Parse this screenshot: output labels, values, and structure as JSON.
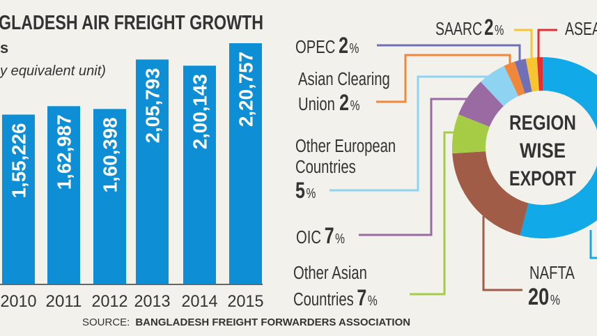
{
  "header": {
    "title": "GLADESH AIR FREIGHT GROWTH",
    "subtitle": "s",
    "unit_note": "y equivalent unit)"
  },
  "source": {
    "label": "SOURCE:",
    "name": "BANGLADESH FREIGHT FORWARDERS ASSOCIATION"
  },
  "donut_center": [
    "REGION",
    "WISE",
    "EXPORT"
  ],
  "chart_data": [
    {
      "type": "bar",
      "title": "GLADESH AIR FREIGHT GROWTH",
      "categories": [
        "2010",
        "2011",
        "2012",
        "2013",
        "2014",
        "2015"
      ],
      "values": [
        155226,
        162987,
        160398,
        205793,
        200143,
        220757
      ],
      "value_labels": [
        "1,55,226",
        "1,62,987",
        "1,60,398",
        "2,05,793",
        "2,00,143",
        "2,20,757"
      ],
      "ylim": [
        0,
        220757
      ],
      "grid": false,
      "color": "#0e8fd5"
    },
    {
      "type": "pie",
      "donut": true,
      "title": "REGION WISE EXPORT",
      "slices": [
        {
          "name": "",
          "value": 54,
          "label": "",
          "color": "#12a9e8"
        },
        {
          "name": "NAFTA",
          "value": 20,
          "label": "20",
          "color": "#a05c47"
        },
        {
          "name": "Other Asian Countries",
          "value": 7,
          "label": "7",
          "color": "#a6cc45"
        },
        {
          "name": "OIC",
          "value": 7,
          "label": "7",
          "color": "#9a6aa3"
        },
        {
          "name": "Other European Countries",
          "value": 5,
          "label": "5",
          "color": "#8fd3f2"
        },
        {
          "name": "Asian Clearing Union",
          "value": 2,
          "label": "2",
          "color": "#f0873a"
        },
        {
          "name": "OPEC",
          "value": 2,
          "label": "2",
          "color": "#6f70b8"
        },
        {
          "name": "SAARC",
          "value": 2,
          "label": "2",
          "color": "#f6c531"
        },
        {
          "name": "ASEA",
          "value": 1,
          "label": "",
          "color": "#e03035"
        }
      ],
      "labels": {
        "opec": {
          "name": "OPEC",
          "pct": "2",
          "unit": "%"
        },
        "acu": {
          "line1": "Asian Clearing",
          "line2": "Union",
          "pct": "2",
          "unit": "%"
        },
        "oec": {
          "line1": "Other European",
          "line2": "Countries",
          "pct": "5",
          "unit": "%"
        },
        "oic": {
          "name": "OIC",
          "pct": "7",
          "unit": "%"
        },
        "oac": {
          "line1": "Other Asian",
          "line2": "Countries",
          "pct": "7",
          "unit": "%"
        },
        "nafta": {
          "name": "NAFTA",
          "pct": "20",
          "unit": "%"
        },
        "saarc": {
          "name": "SAARC",
          "pct": "2",
          "unit": "%"
        },
        "asean": {
          "name": "ASEA"
        }
      }
    }
  ]
}
